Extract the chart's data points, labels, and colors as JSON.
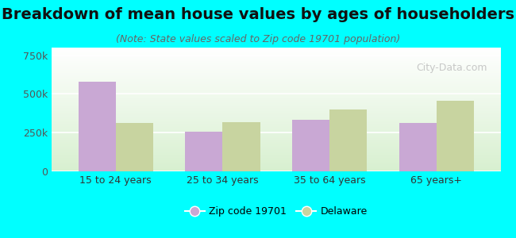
{
  "title": "Breakdown of mean house values by ages of householders",
  "subtitle": "(Note: State values scaled to Zip code 19701 population)",
  "categories": [
    "15 to 24 years",
    "25 to 34 years",
    "35 to 64 years",
    "65 years+"
  ],
  "zip_values": [
    580000,
    255000,
    335000,
    315000
  ],
  "state_values": [
    315000,
    320000,
    400000,
    455000
  ],
  "zip_color": "#c9a8d4",
  "state_color": "#c8d4a0",
  "background_color": "#00ffff",
  "ylim": [
    0,
    800000
  ],
  "yticks": [
    0,
    250000,
    500000,
    750000
  ],
  "ytick_labels": [
    "0",
    "250k",
    "500k",
    "750k"
  ],
  "bar_width": 0.35,
  "title_fontsize": 14,
  "subtitle_fontsize": 9,
  "legend_label_zip": "Zip code 19701",
  "legend_label_state": "Delaware",
  "watermark": "City-Data.com"
}
